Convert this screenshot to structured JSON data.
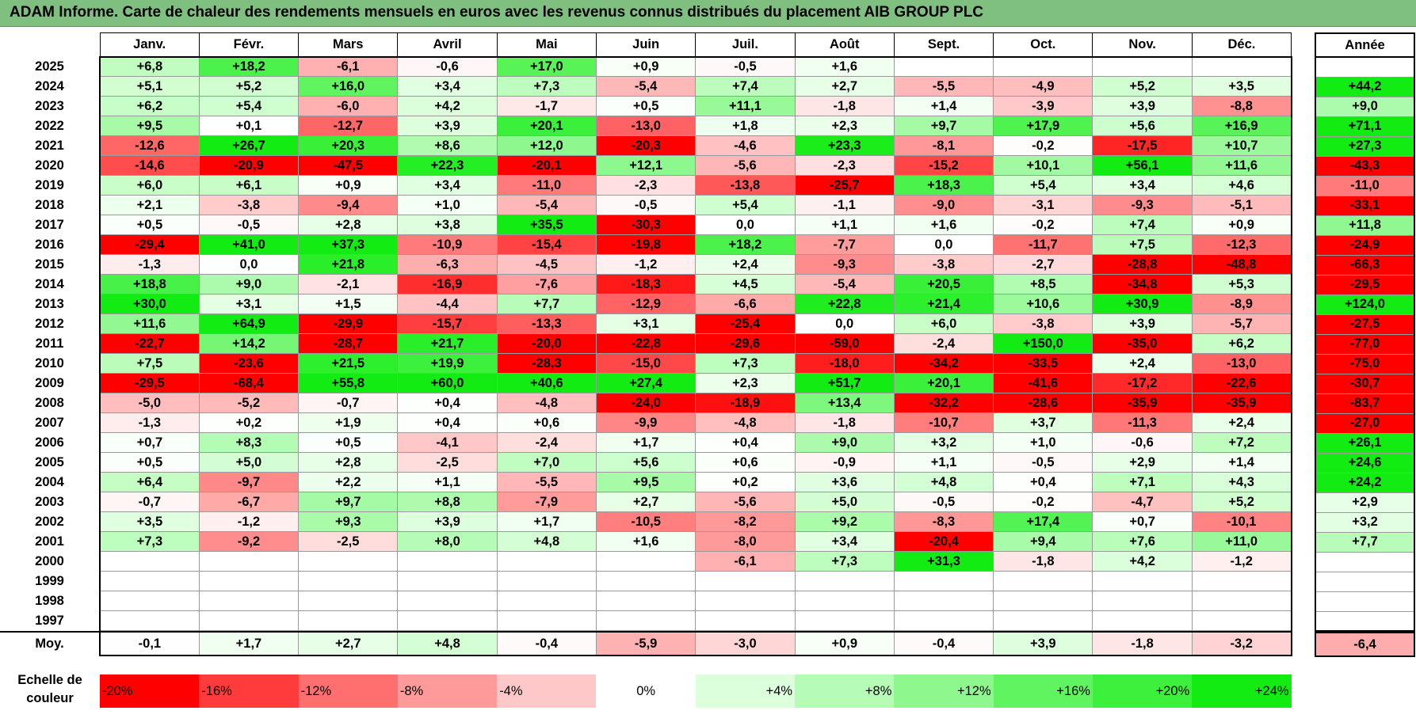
{
  "title": "ADAM Informe. Carte de chaleur des rendements mensuels en euros avec les revenus connus distribués du placement AIB GROUP PLC",
  "chart_data": {
    "type": "heatmap",
    "title": "ADAM Informe. Carte de chaleur des rendements mensuels en euros avec les revenus connus distribués du placement AIB GROUP PLC",
    "columns": [
      "Janv.",
      "Févr.",
      "Mars",
      "Avril",
      "Mai",
      "Juin",
      "Juil.",
      "Août",
      "Sept.",
      "Oct.",
      "Nov.",
      "Déc."
    ],
    "annual_header": "Année",
    "rows": [
      {
        "year": "2025",
        "values": [
          "+6,8",
          "+18,2",
          "-6,1",
          "-0,6",
          "+17,0",
          "+0,9",
          "-0,5",
          "+1,6",
          "",
          "",
          "",
          ""
        ],
        "annual": ""
      },
      {
        "year": "2024",
        "values": [
          "+5,1",
          "+5,2",
          "+16,0",
          "+3,4",
          "+7,3",
          "-5,4",
          "+7,4",
          "+2,7",
          "-5,5",
          "-4,9",
          "+5,2",
          "+3,5"
        ],
        "annual": "+44,2"
      },
      {
        "year": "2023",
        "values": [
          "+6,2",
          "+5,4",
          "-6,0",
          "+4,2",
          "-1,7",
          "+0,5",
          "+11,1",
          "-1,8",
          "+1,4",
          "-3,9",
          "+3,9",
          "-8,8"
        ],
        "annual": "+9,0"
      },
      {
        "year": "2022",
        "values": [
          "+9,5",
          "+0,1",
          "-12,7",
          "+3,9",
          "+20,1",
          "-13,0",
          "+1,8",
          "+2,3",
          "+9,7",
          "+17,9",
          "+5,6",
          "+16,9"
        ],
        "annual": "+71,1"
      },
      {
        "year": "2021",
        "values": [
          "-12,6",
          "+26,7",
          "+20,3",
          "+8,6",
          "+12,0",
          "-20,3",
          "-4,6",
          "+23,3",
          "-8,1",
          "-0,2",
          "-17,5",
          "+10,7"
        ],
        "annual": "+27,3"
      },
      {
        "year": "2020",
        "values": [
          "-14,6",
          "-20,9",
          "-47,5",
          "+22,3",
          "-20,1",
          "+12,1",
          "-5,6",
          "-2,3",
          "-15,2",
          "+10,1",
          "+56,1",
          "+11,6"
        ],
        "annual": "-43,3"
      },
      {
        "year": "2019",
        "values": [
          "+6,0",
          "+6,1",
          "+0,9",
          "+3,4",
          "-11,0",
          "-2,3",
          "-13,8",
          "-25,7",
          "+18,3",
          "+5,4",
          "+3,4",
          "+4,6"
        ],
        "annual": "-11,0"
      },
      {
        "year": "2018",
        "values": [
          "+2,1",
          "-3,8",
          "-9,4",
          "+1,0",
          "-5,4",
          "-0,5",
          "+5,4",
          "-1,1",
          "-9,0",
          "-3,1",
          "-9,3",
          "-5,1"
        ],
        "annual": "-33,1"
      },
      {
        "year": "2017",
        "values": [
          "+0,5",
          "-0,5",
          "+2,8",
          "+3,8",
          "+35,5",
          "-30,3",
          "0,0",
          "+1,1",
          "+1,6",
          "-0,2",
          "+7,4",
          "+0,9"
        ],
        "annual": "+11,8"
      },
      {
        "year": "2016",
        "values": [
          "-29,4",
          "+41,0",
          "+37,3",
          "-10,9",
          "-15,4",
          "-19,8",
          "+18,2",
          "-7,7",
          "0,0",
          "-11,7",
          "+7,5",
          "-12,3"
        ],
        "annual": "-24,9"
      },
      {
        "year": "2015",
        "values": [
          "-1,3",
          "0,0",
          "+21,8",
          "-6,3",
          "-4,5",
          "-1,2",
          "+2,4",
          "-9,3",
          "-3,8",
          "-2,7",
          "-28,8",
          "-48,8"
        ],
        "annual": "-66,3"
      },
      {
        "year": "2014",
        "values": [
          "+18,8",
          "+9,0",
          "-2,1",
          "-16,9",
          "-7,6",
          "-18,3",
          "+4,5",
          "-5,4",
          "+20,5",
          "+8,5",
          "-34,8",
          "+5,3"
        ],
        "annual": "-29,5"
      },
      {
        "year": "2013",
        "values": [
          "+30,0",
          "+3,1",
          "+1,5",
          "-4,4",
          "+7,7",
          "-12,9",
          "-6,6",
          "+22,8",
          "+21,4",
          "+10,6",
          "+30,9",
          "-8,9"
        ],
        "annual": "+124,0"
      },
      {
        "year": "2012",
        "values": [
          "+11,6",
          "+64,9",
          "-29,9",
          "-15,7",
          "-13,3",
          "+3,1",
          "-25,4",
          "0,0",
          "+6,0",
          "-3,8",
          "+3,9",
          "-5,7"
        ],
        "annual": "-27,5"
      },
      {
        "year": "2011",
        "values": [
          "-22,7",
          "+14,2",
          "-28,7",
          "+21,7",
          "-20,0",
          "-22,8",
          "-29,6",
          "-59,0",
          "-2,4",
          "+150,0",
          "-35,0",
          "+6,2"
        ],
        "annual": "-77,0"
      },
      {
        "year": "2010",
        "values": [
          "+7,5",
          "-23,6",
          "+21,5",
          "+19,9",
          "-28,3",
          "-15,0",
          "+7,3",
          "-18,0",
          "-34,2",
          "-33,5",
          "+2,4",
          "-13,0"
        ],
        "annual": "-75,0"
      },
      {
        "year": "2009",
        "values": [
          "-29,5",
          "-68,4",
          "+55,8",
          "+60,0",
          "+40,6",
          "+27,4",
          "+2,3",
          "+51,7",
          "+20,1",
          "-41,6",
          "-17,2",
          "-22,6"
        ],
        "annual": "-30,7"
      },
      {
        "year": "2008",
        "values": [
          "-5,0",
          "-5,2",
          "-0,7",
          "+0,4",
          "-4,8",
          "-24,0",
          "-18,9",
          "+13,4",
          "-32,2",
          "-28,6",
          "-35,9",
          "-35,9"
        ],
        "annual": "-83,7"
      },
      {
        "year": "2007",
        "values": [
          "-1,3",
          "+0,2",
          "+1,9",
          "+0,4",
          "+0,6",
          "-9,9",
          "-4,8",
          "-1,8",
          "-10,7",
          "+3,7",
          "-11,3",
          "+2,4"
        ],
        "annual": "-27,0"
      },
      {
        "year": "2006",
        "values": [
          "+0,7",
          "+8,3",
          "+0,5",
          "-4,1",
          "-2,4",
          "+1,7",
          "+0,4",
          "+9,0",
          "+3,2",
          "+1,0",
          "-0,6",
          "+7,2"
        ],
        "annual": "+26,1"
      },
      {
        "year": "2005",
        "values": [
          "+0,5",
          "+5,0",
          "+2,8",
          "-2,5",
          "+7,0",
          "+5,6",
          "+0,6",
          "-0,9",
          "+1,1",
          "-0,5",
          "+2,9",
          "+1,4"
        ],
        "annual": "+24,6"
      },
      {
        "year": "2004",
        "values": [
          "+6,4",
          "-9,7",
          "+2,2",
          "+1,1",
          "-5,5",
          "+9,5",
          "+0,2",
          "+3,6",
          "+4,8",
          "+0,4",
          "+7,1",
          "+4,3"
        ],
        "annual": "+24,2"
      },
      {
        "year": "2003",
        "values": [
          "-0,7",
          "-6,7",
          "+9,7",
          "+8,8",
          "-7,9",
          "+2,7",
          "-5,6",
          "+5,0",
          "-0,5",
          "-0,2",
          "-4,7",
          "+5,2"
        ],
        "annual": "+2,9"
      },
      {
        "year": "2002",
        "values": [
          "+3,5",
          "-1,2",
          "+9,3",
          "+3,9",
          "+1,7",
          "-10,5",
          "-8,2",
          "+9,2",
          "-8,3",
          "+17,4",
          "+0,7",
          "-10,1"
        ],
        "annual": "+3,2"
      },
      {
        "year": "2001",
        "values": [
          "+7,3",
          "-9,2",
          "-2,5",
          "+8,0",
          "+4,8",
          "+1,6",
          "-8,0",
          "+3,4",
          "-20,4",
          "+9,4",
          "+7,6",
          "+11,0"
        ],
        "annual": "+7,7"
      },
      {
        "year": "2000",
        "values": [
          "",
          "",
          "",
          "",
          "",
          "",
          "-6,1",
          "+7,3",
          "+31,3",
          "-1,8",
          "+4,2",
          "-1,2"
        ],
        "annual": ""
      },
      {
        "year": "1999",
        "values": [
          "",
          "",
          "",
          "",
          "",
          "",
          "",
          "",
          "",
          "",
          "",
          ""
        ],
        "annual": ""
      },
      {
        "year": "1998",
        "values": [
          "",
          "",
          "",
          "",
          "",
          "",
          "",
          "",
          "",
          "",
          "",
          ""
        ],
        "annual": ""
      },
      {
        "year": "1997",
        "values": [
          "",
          "",
          "",
          "",
          "",
          "",
          "",
          "",
          "",
          "",
          "",
          ""
        ],
        "annual": ""
      }
    ],
    "average": {
      "label": "Moy.",
      "values": [
        "-0,1",
        "+1,7",
        "+2,7",
        "+4,8",
        "-0,4",
        "-5,9",
        "-3,0",
        "+0,9",
        "-0,4",
        "+3,9",
        "-1,8",
        "-3,2"
      ],
      "annual": "-6,4"
    },
    "color_scale": {
      "label": "Echelle de couleur",
      "stops": [
        "-20%",
        "-16%",
        "-12%",
        "-8%",
        "-4%",
        "0%",
        "+4%",
        "+8%",
        "+12%",
        "+16%",
        "+20%",
        "+24%"
      ],
      "colors": [
        "#ff0000",
        "#ff3b3b",
        "#ff6f6f",
        "#ff9a9a",
        "#ffc8c8",
        "#ffffff",
        "#dcffdc",
        "#b6fcb6",
        "#8ef88e",
        "#60f460",
        "#3cf03c",
        "#13ec13"
      ]
    }
  }
}
